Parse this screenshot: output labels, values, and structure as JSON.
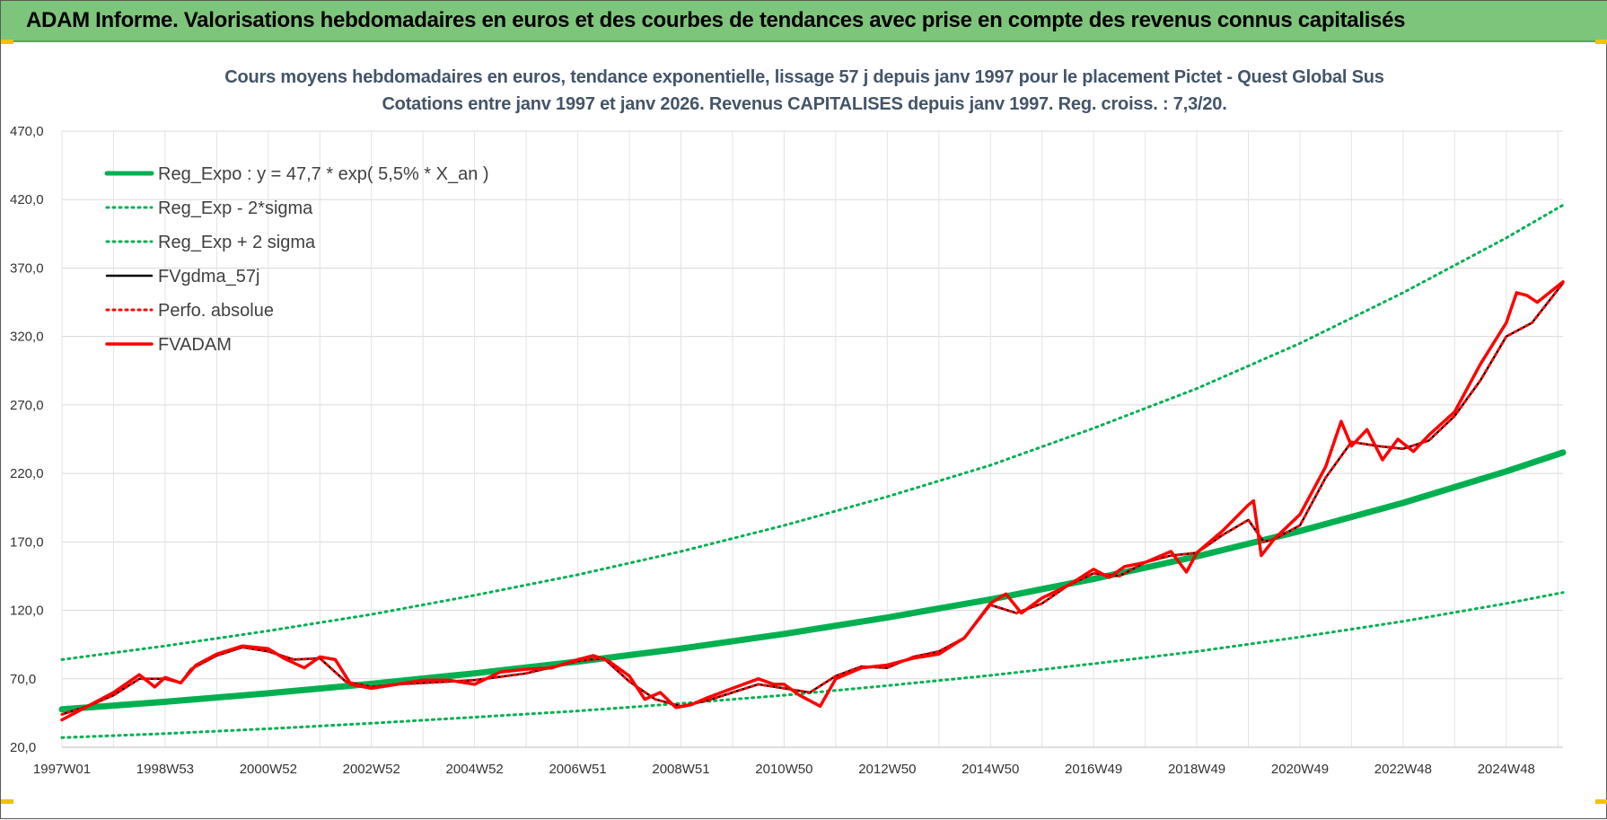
{
  "header": {
    "title": "ADAM Informe. Valorisations hebdomadaires en euros et des courbes de tendances avec prise en compte des revenus connus capitalisés"
  },
  "chart_data": {
    "type": "line",
    "title": "Cours moyens hebdomadaires en euros, tendance exponentielle, lissage 57 j depuis janv 1997  pour le placement Pictet - Quest Global Sus",
    "subtitle": "Cotations entre janv 1997 et janv 2026. Revenus CAPITALISES depuis janv 1997. Reg. croiss. : 7,3/20.",
    "xlabel": "",
    "ylabel": "",
    "ylim": [
      20,
      470
    ],
    "xlim": [
      1997.0,
      2026.1
    ],
    "yticks": [
      "20,0",
      "70,0",
      "120,0",
      "170,0",
      "220,0",
      "270,0",
      "320,0",
      "370,0",
      "420,0",
      "470,0"
    ],
    "xticks": [
      {
        "label": "1997W01",
        "x": 1997.0
      },
      {
        "label": "1998W53",
        "x": 1999.0
      },
      {
        "label": "2000W52",
        "x": 2001.0
      },
      {
        "label": "2002W52",
        "x": 2003.0
      },
      {
        "label": "2004W52",
        "x": 2005.0
      },
      {
        "label": "2006W51",
        "x": 2007.0
      },
      {
        "label": "2008W51",
        "x": 2009.0
      },
      {
        "label": "2010W50",
        "x": 2011.0
      },
      {
        "label": "2012W50",
        "x": 2013.0
      },
      {
        "label": "2014W50",
        "x": 2015.0
      },
      {
        "label": "2016W49",
        "x": 2017.0
      },
      {
        "label": "2018W49",
        "x": 2019.0
      },
      {
        "label": "2020W49",
        "x": 2021.0
      },
      {
        "label": "2022W48",
        "x": 2023.0
      },
      {
        "label": "2024W48",
        "x": 2025.0
      }
    ],
    "grid": true,
    "legend_position": "top-left",
    "colors": {
      "green": "#00b050",
      "black": "#000000",
      "red": "#ff0000"
    },
    "series": [
      {
        "name": "Reg_Expo : y = 47,7 * exp( 5,5% *  X_an )",
        "style": "solid-thick",
        "color": "#00b050",
        "x": [
          1997,
          1999,
          2001,
          2003,
          2005,
          2007,
          2009,
          2011,
          2013,
          2015,
          2017,
          2019,
          2021,
          2023,
          2025,
          2026.1
        ],
        "y": [
          47.7,
          53.2,
          59.4,
          66.3,
          74.0,
          82.6,
          92.1,
          102.8,
          114.7,
          128.0,
          142.9,
          159.4,
          177.9,
          198.5,
          221.5,
          235.3
        ]
      },
      {
        "name": "Reg_Exp - 2*sigma",
        "style": "dotted",
        "color": "#00b050",
        "x": [
          1997,
          1999,
          2001,
          2003,
          2005,
          2007,
          2009,
          2011,
          2013,
          2015,
          2017,
          2019,
          2021,
          2023,
          2025,
          2026.1
        ],
        "y": [
          27,
          30,
          33.5,
          37.5,
          42,
          46.5,
          52,
          58,
          65,
          72.5,
          81,
          90,
          100.5,
          112,
          125,
          133
        ]
      },
      {
        "name": "Reg_Exp + 2 sigma",
        "style": "dotted",
        "color": "#00b050",
        "x": [
          1997,
          1999,
          2001,
          2003,
          2005,
          2007,
          2009,
          2011,
          2013,
          2015,
          2017,
          2019,
          2021,
          2023,
          2025,
          2026.1
        ],
        "y": [
          84,
          94,
          105,
          117,
          131,
          146,
          163,
          182,
          203,
          226,
          253,
          282,
          315,
          352,
          392,
          416
        ]
      },
      {
        "name": "FVgdma_57j",
        "style": "solid",
        "color": "#000000",
        "x": [
          1997,
          1997.5,
          1998,
          1998.5,
          1999,
          1999.3,
          1999.5,
          2000,
          2000.5,
          2001,
          2001.5,
          2002,
          2002.5,
          2003,
          2003.5,
          2004,
          2005,
          2006,
          2007,
          2007.5,
          2008,
          2008.5,
          2009,
          2009.5,
          2010,
          2010.5,
          2011,
          2011.5,
          2012,
          2012.5,
          2013,
          2013.5,
          2014,
          2014.5,
          2015,
          2015.5,
          2016,
          2016.5,
          2017,
          2017.5,
          2018,
          2018.5,
          2019,
          2019.5,
          2020,
          2020.3,
          2020.5,
          2021,
          2021.5,
          2022,
          2022.5,
          2023,
          2023.5,
          2024,
          2024.5,
          2025,
          2025.5,
          2026.1
        ],
        "y": [
          44,
          50,
          58,
          70,
          70,
          67,
          77,
          87,
          93,
          90,
          84,
          85,
          68,
          64,
          66,
          67,
          69,
          74,
          83,
          85,
          68,
          55,
          50,
          54,
          60,
          66,
          63,
          60,
          72,
          79,
          78,
          86,
          90,
          100,
          124,
          118,
          125,
          138,
          147,
          145,
          155,
          160,
          162,
          175,
          186,
          170,
          172,
          182,
          217,
          243,
          240,
          238,
          244,
          262,
          288,
          320,
          330,
          359
        ]
      },
      {
        "name": "Perfo. absolue",
        "style": "dotted",
        "color": "#ff0000",
        "x": [
          1997,
          1997.5,
          1998,
          1998.5,
          1999,
          1999.3,
          1999.5,
          2000,
          2000.5,
          2001,
          2001.5,
          2002,
          2002.5,
          2003,
          2003.5,
          2004,
          2005,
          2006,
          2007,
          2007.5,
          2008,
          2008.5,
          2009,
          2009.5,
          2010,
          2010.5,
          2011,
          2011.5,
          2012,
          2012.5,
          2013,
          2013.5,
          2014,
          2014.5,
          2015,
          2015.5,
          2016,
          2016.5,
          2017,
          2017.5,
          2018,
          2018.5,
          2019,
          2019.5,
          2020,
          2020.3,
          2020.5,
          2021,
          2021.5,
          2022,
          2022.5,
          2023,
          2023.5,
          2024,
          2024.5,
          2025,
          2025.5,
          2026.1
        ],
        "y": [
          44,
          50,
          58,
          70,
          70,
          67,
          77,
          87,
          93,
          90,
          84,
          85,
          68,
          64,
          66,
          67,
          69,
          74,
          83,
          85,
          68,
          55,
          50,
          54,
          60,
          66,
          63,
          60,
          72,
          79,
          78,
          86,
          90,
          100,
          124,
          118,
          125,
          138,
          147,
          145,
          155,
          160,
          162,
          175,
          186,
          170,
          172,
          182,
          217,
          243,
          240,
          238,
          244,
          262,
          288,
          320,
          330,
          359
        ]
      },
      {
        "name": "FVADAM",
        "style": "solid-thick",
        "color": "#ff0000",
        "x": [
          1997,
          1997.5,
          1998,
          1998.5,
          1998.8,
          1999,
          1999.3,
          1999.6,
          2000,
          2000.5,
          2001,
          2001.3,
          2001.7,
          2002,
          2002.3,
          2002.6,
          2003,
          2003.5,
          2004,
          2004.5,
          2005,
          2005.5,
          2006,
          2006.5,
          2007,
          2007.3,
          2007.6,
          2008,
          2008.3,
          2008.6,
          2008.9,
          2009.2,
          2009.5,
          2010,
          2010.5,
          2010.8,
          2011,
          2011.3,
          2011.7,
          2012,
          2012.5,
          2013,
          2013.5,
          2014,
          2014.5,
          2015,
          2015.3,
          2015.6,
          2016,
          2016.5,
          2017,
          2017.3,
          2017.6,
          2018,
          2018.5,
          2018.8,
          2019,
          2019.5,
          2020,
          2020.1,
          2020.25,
          2020.5,
          2021,
          2021.5,
          2021.8,
          2022,
          2022.3,
          2022.6,
          2022.9,
          2023.2,
          2023.5,
          2024,
          2024.5,
          2025,
          2025.2,
          2025.4,
          2025.6,
          2026.1
        ],
        "y": [
          40,
          50,
          60,
          73,
          64,
          71,
          67,
          80,
          88,
          94,
          92,
          85,
          78,
          86,
          84,
          66,
          63,
          66,
          69,
          69,
          66,
          75,
          77,
          78,
          84,
          87,
          83,
          72,
          55,
          60,
          49,
          51,
          56,
          63,
          70,
          66,
          66,
          58,
          50,
          70,
          78,
          80,
          85,
          88,
          100,
          125,
          132,
          118,
          129,
          138,
          150,
          144,
          152,
          155,
          163,
          148,
          162,
          178,
          197,
          200,
          160,
          172,
          190,
          225,
          258,
          240,
          252,
          230,
          245,
          236,
          248,
          265,
          300,
          330,
          352,
          350,
          345,
          360
        ]
      }
    ]
  }
}
